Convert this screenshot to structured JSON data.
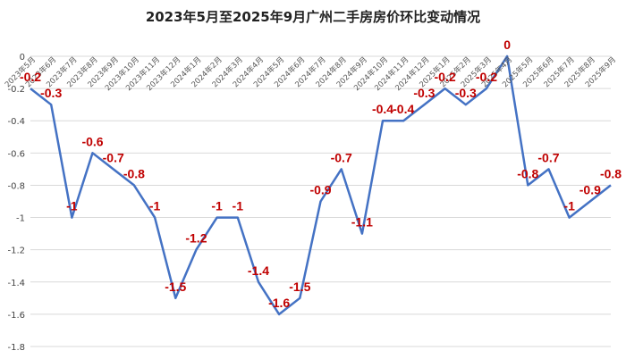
{
  "chart_data": {
    "type": "line",
    "title": "2023年5月至2025年9月广州二手房房价环比变动情况",
    "xlabel": "",
    "ylabel": "",
    "ylim": [
      -1.8,
      0
    ],
    "yticks": [
      "0",
      "-0.2",
      "-0.4",
      "-0.6",
      "-0.8",
      "-1",
      "-1.2",
      "-1.4",
      "-1.6",
      "-1.8"
    ],
    "ytick_values": [
      0,
      -0.2,
      -0.4,
      -0.6,
      -0.8,
      -1,
      -1.2,
      -1.4,
      -1.6,
      -1.8
    ],
    "grid": true,
    "categories": [
      "2023年5月",
      "2023年6月",
      "2023年7月",
      "2023年8月",
      "2023年9月",
      "2023年10月",
      "2023年11月",
      "2023年12月",
      "2024年1月",
      "2024年2月",
      "2024年3月",
      "2024年4月",
      "2024年5月",
      "2024年6月",
      "2024年7月",
      "2024年8月",
      "2024年9月",
      "2024年10月",
      "2024年11月",
      "2024年12月",
      "2025年1月",
      "2025年2月",
      "2025年3月",
      "2025年4月",
      "2025年5月",
      "2025年6月",
      "2025年7月",
      "2025年8月",
      "2025年9月"
    ],
    "values": [
      -0.2,
      -0.3,
      -1,
      -0.6,
      -0.7,
      -0.8,
      -1,
      -1.5,
      -1.2,
      -1,
      -1,
      -1.4,
      -1.6,
      -1.5,
      -0.9,
      -0.7,
      -1.1,
      -0.4,
      -0.4,
      -0.3,
      -0.2,
      -0.3,
      -0.2,
      0,
      -0.8,
      -0.7,
      -1,
      -0.9,
      -0.8
    ],
    "labels": [
      "-0.2",
      "-0.3",
      "-1",
      "-0.6",
      "-0.7",
      "-0.8",
      "-1",
      "-1.5",
      "-1.2",
      "-1",
      "-1",
      "-1.4",
      "-1.6",
      "-1.5",
      "-0.9",
      "-0.7",
      "-1.1",
      "-0.4",
      "-0.4",
      "-0.3",
      "-0.2",
      "-0.3",
      "-0.2",
      "0",
      "-0.8",
      "-0.7",
      "-1",
      "-0.9",
      "-0.8"
    ],
    "line_color": "#4472c4",
    "label_color": "#c00000",
    "legend": "none"
  }
}
